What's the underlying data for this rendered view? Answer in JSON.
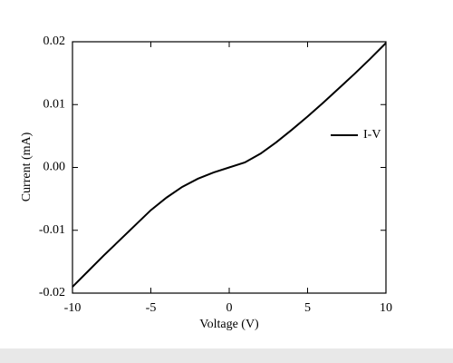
{
  "chart_data": {
    "type": "line",
    "x_label": "Voltage (V)",
    "y_label": "Current (mA)",
    "x": [
      -10,
      -9,
      -8,
      -7,
      -6,
      -5,
      -4,
      -3,
      -2,
      -1,
      0,
      1,
      2,
      3,
      4,
      5,
      6,
      7,
      8,
      9,
      10
    ],
    "series": [
      {
        "name": "I-V",
        "color": "#000000",
        "values": [
          -0.019,
          -0.0165,
          -0.014,
          -0.0116,
          -0.0092,
          -0.0068,
          -0.0048,
          -0.0031,
          -0.0018,
          -0.0008,
          0.0,
          0.0008,
          0.0022,
          0.004,
          0.006,
          0.0081,
          0.0103,
          0.0126,
          0.0149,
          0.0173,
          0.0198
        ]
      }
    ],
    "xlim": [
      -10,
      10
    ],
    "xticks": [
      -10,
      -5,
      0,
      5,
      10
    ],
    "ylim": [
      -0.02,
      0.02
    ],
    "yticks": [
      -0.02,
      -0.01,
      {
        "value": 0,
        "label": "0.00"
      },
      0.01,
      0.02
    ],
    "legend_position": "right"
  }
}
